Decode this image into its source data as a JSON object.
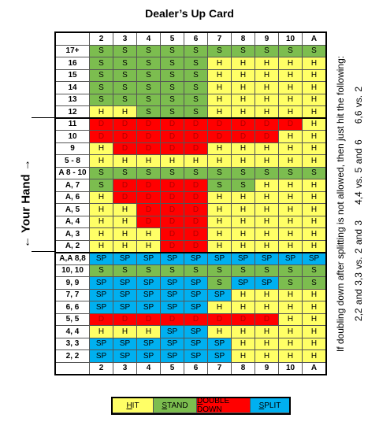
{
  "header": {
    "title": "Dealer’s Up Card",
    "columns": [
      "2",
      "3",
      "4",
      "5",
      "6",
      "7",
      "8",
      "9",
      "10",
      "A"
    ]
  },
  "side_label": "← Your Hand →",
  "note": {
    "title": "If doubling down after splitting is not allowed, then just hit the following:",
    "items": [
      "2,2 and 3,3 vs. 2 and 3",
      "4,4 vs. 5 and 6",
      "6,6 vs. 2"
    ]
  },
  "legend": [
    {
      "label": "HIT",
      "code": "H",
      "color": "#ffff66"
    },
    {
      "label": "STAND",
      "code": "S",
      "color": "#7cbd4f"
    },
    {
      "label": "DOUBLE DOWN",
      "code": "D",
      "color": "#ff0000"
    },
    {
      "label": "SPLIT",
      "code": "SP",
      "color": "#00b0f0"
    }
  ],
  "rows": [
    {
      "label": "17+",
      "cells": [
        "S",
        "S",
        "S",
        "S",
        "S",
        "S",
        "S",
        "S",
        "S",
        "S"
      ]
    },
    {
      "label": "16",
      "cells": [
        "S",
        "S",
        "S",
        "S",
        "S",
        "H",
        "H",
        "H",
        "H",
        "H"
      ]
    },
    {
      "label": "15",
      "cells": [
        "S",
        "S",
        "S",
        "S",
        "S",
        "H",
        "H",
        "H",
        "H",
        "H"
      ]
    },
    {
      "label": "14",
      "cells": [
        "S",
        "S",
        "S",
        "S",
        "S",
        "H",
        "H",
        "H",
        "H",
        "H"
      ]
    },
    {
      "label": "13",
      "cells": [
        "S",
        "S",
        "S",
        "S",
        "S",
        "H",
        "H",
        "H",
        "H",
        "H"
      ]
    },
    {
      "label": "12",
      "cells": [
        "H",
        "H",
        "S",
        "S",
        "S",
        "H",
        "H",
        "H",
        "H",
        "H"
      ]
    },
    {
      "label": "11",
      "cells": [
        "D",
        "D",
        "D",
        "D",
        "D",
        "D",
        "D",
        "D",
        "D",
        "H"
      ]
    },
    {
      "label": "10",
      "cells": [
        "D",
        "D",
        "D",
        "D",
        "D",
        "D",
        "D",
        "D",
        "H",
        "H"
      ]
    },
    {
      "label": "9",
      "cells": [
        "H",
        "D",
        "D",
        "D",
        "D",
        "H",
        "H",
        "H",
        "H",
        "H"
      ]
    },
    {
      "label": "5 - 8",
      "cells": [
        "H",
        "H",
        "H",
        "H",
        "H",
        "H",
        "H",
        "H",
        "H",
        "H"
      ]
    },
    {
      "label": "A 8 - 10",
      "cells": [
        "S",
        "S",
        "S",
        "S",
        "S",
        "S",
        "S",
        "S",
        "S",
        "S"
      ]
    },
    {
      "label": "A, 7",
      "cells": [
        "S",
        "D",
        "D",
        "D",
        "D",
        "S",
        "S",
        "H",
        "H",
        "H"
      ]
    },
    {
      "label": "A, 6",
      "cells": [
        "H",
        "D",
        "D",
        "D",
        "D",
        "H",
        "H",
        "H",
        "H",
        "H"
      ]
    },
    {
      "label": "A, 5",
      "cells": [
        "H",
        "H",
        "D",
        "D",
        "D",
        "H",
        "H",
        "H",
        "H",
        "H"
      ]
    },
    {
      "label": "A, 4",
      "cells": [
        "H",
        "H",
        "D",
        "D",
        "D",
        "H",
        "H",
        "H",
        "H",
        "H"
      ]
    },
    {
      "label": "A, 3",
      "cells": [
        "H",
        "H",
        "H",
        "D",
        "D",
        "H",
        "H",
        "H",
        "H",
        "H"
      ]
    },
    {
      "label": "A, 2",
      "cells": [
        "H",
        "H",
        "H",
        "D",
        "D",
        "H",
        "H",
        "H",
        "H",
        "H"
      ]
    },
    {
      "label": "A,A 8,8",
      "cells": [
        "SP",
        "SP",
        "SP",
        "SP",
        "SP",
        "SP",
        "SP",
        "SP",
        "SP",
        "SP"
      ]
    },
    {
      "label": "10, 10",
      "cells": [
        "S",
        "S",
        "S",
        "S",
        "S",
        "S",
        "S",
        "S",
        "S",
        "S"
      ]
    },
    {
      "label": "9, 9",
      "cells": [
        "SP",
        "SP",
        "SP",
        "SP",
        "SP",
        "S",
        "SP",
        "SP",
        "S",
        "S"
      ]
    },
    {
      "label": "7, 7",
      "cells": [
        "SP",
        "SP",
        "SP",
        "SP",
        "SP",
        "SP",
        "H",
        "H",
        "H",
        "H"
      ]
    },
    {
      "label": "6, 6",
      "cells": [
        "SP",
        "SP",
        "SP",
        "SP",
        "SP",
        "H",
        "H",
        "H",
        "H",
        "H"
      ]
    },
    {
      "label": "5, 5",
      "cells": [
        "D",
        "D",
        "D",
        "D",
        "D",
        "D",
        "D",
        "D",
        "H",
        "H"
      ]
    },
    {
      "label": "4, 4",
      "cells": [
        "H",
        "H",
        "H",
        "SP",
        "SP",
        "H",
        "H",
        "H",
        "H",
        "H"
      ]
    },
    {
      "label": "3, 3",
      "cells": [
        "SP",
        "SP",
        "SP",
        "SP",
        "SP",
        "SP",
        "H",
        "H",
        "H",
        "H"
      ]
    },
    {
      "label": "2, 2",
      "cells": [
        "SP",
        "SP",
        "SP",
        "SP",
        "SP",
        "SP",
        "H",
        "H",
        "H",
        "H"
      ]
    }
  ]
}
